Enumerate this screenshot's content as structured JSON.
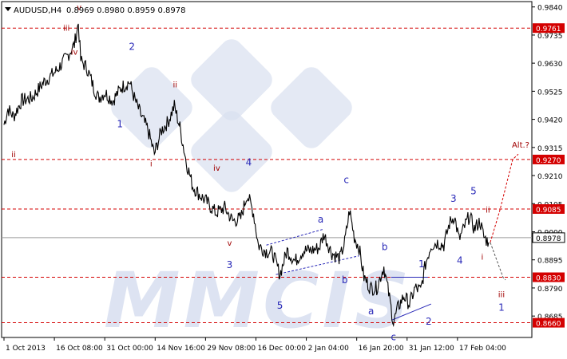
{
  "header": {
    "symbol": "AUDUSD,H4",
    "ohlc": "0.8969 0.8980 0.8959 0.8978"
  },
  "colors": {
    "price_line": "#000000",
    "level_line": "#d40000",
    "level_label_bg": "#d40000",
    "current_label_bg": "#ffffff",
    "wave_red": "#a00000",
    "wave_blue": "#2a2ab8",
    "watermark": "#d8dff0"
  },
  "watermark": {
    "text": "MMCIS"
  },
  "chart_data": {
    "type": "line",
    "ylim": [
      0.8605,
      0.986
    ],
    "x_ticks": [
      {
        "label": "1 Oct 2013",
        "t": 0
      },
      {
        "label": "16 Oct 08:00",
        "t": 63
      },
      {
        "label": "31 Oct 00:00",
        "t": 126
      },
      {
        "label": "14 Nov 16:00",
        "t": 189
      },
      {
        "label": "29 Nov 08:00",
        "t": 252
      },
      {
        "label": "16 Dec 00:00",
        "t": 315
      },
      {
        "label": "2 Jan 04:00",
        "t": 378
      },
      {
        "label": "16 Jan 20:00",
        "t": 441
      },
      {
        "label": "31 Jan 12:00",
        "t": 504
      },
      {
        "label": "17 Feb 04:00",
        "t": 567
      }
    ],
    "y_ticks": [
      "0.9840",
      "0.9735",
      "0.9630",
      "0.9525",
      "0.9420",
      "0.9315",
      "0.9210",
      "0.9105",
      "0.9000",
      "0.8895",
      "0.8790",
      "0.8685"
    ],
    "levels": [
      {
        "label": "0.9761",
        "value": 0.9761
      },
      {
        "label": "0.9270",
        "value": 0.927
      },
      {
        "label": "0.9085",
        "value": 0.9085
      },
      {
        "label": "0.8830",
        "value": 0.883
      },
      {
        "label": "0.8660",
        "value": 0.866
      }
    ],
    "current_price": {
      "label": "0.8978",
      "value": 0.8978
    },
    "series": [
      {
        "anchors": [
          [
            0,
            0.94
          ],
          [
            5,
            0.946
          ],
          [
            12,
            0.943
          ],
          [
            22,
            0.949
          ],
          [
            35,
            0.95
          ],
          [
            50,
            0.956
          ],
          [
            65,
            0.96
          ],
          [
            78,
            0.965
          ],
          [
            88,
            0.97
          ],
          [
            93,
            0.978
          ],
          [
            96,
            0.964
          ],
          [
            104,
            0.961
          ],
          [
            112,
            0.954
          ],
          [
            118,
            0.95
          ],
          [
            126,
            0.952
          ],
          [
            136,
            0.949
          ],
          [
            147,
            0.954
          ],
          [
            157,
            0.956
          ],
          [
            164,
            0.949
          ],
          [
            172,
            0.943
          ],
          [
            180,
            0.938
          ],
          [
            188,
            0.929
          ],
          [
            197,
            0.938
          ],
          [
            205,
            0.941
          ],
          [
            213,
            0.947
          ],
          [
            220,
            0.939
          ],
          [
            228,
            0.926
          ],
          [
            236,
            0.917
          ],
          [
            244,
            0.914
          ],
          [
            254,
            0.911
          ],
          [
            265,
            0.907
          ],
          [
            276,
            0.909
          ],
          [
            286,
            0.904
          ],
          [
            296,
            0.905
          ],
          [
            304,
            0.914
          ],
          [
            312,
            0.907
          ],
          [
            318,
            0.895
          ],
          [
            326,
            0.893
          ],
          [
            336,
            0.892
          ],
          [
            345,
            0.884
          ],
          [
            354,
            0.893
          ],
          [
            364,
            0.889
          ],
          [
            374,
            0.893
          ],
          [
            384,
            0.893
          ],
          [
            394,
            0.894
          ],
          [
            400,
            0.899
          ],
          [
            410,
            0.892
          ],
          [
            420,
            0.89
          ],
          [
            426,
            0.896
          ],
          [
            432,
            0.908
          ],
          [
            438,
            0.898
          ],
          [
            444,
            0.894
          ],
          [
            450,
            0.883
          ],
          [
            458,
            0.879
          ],
          [
            466,
            0.879
          ],
          [
            475,
            0.887
          ],
          [
            481,
            0.877
          ],
          [
            487,
            0.866
          ],
          [
            493,
            0.872
          ],
          [
            500,
            0.876
          ],
          [
            507,
            0.873
          ],
          [
            514,
            0.879
          ],
          [
            521,
            0.878
          ],
          [
            527,
            0.888
          ],
          [
            534,
            0.895
          ],
          [
            542,
            0.896
          ],
          [
            550,
            0.895
          ],
          [
            557,
            0.903
          ],
          [
            563,
            0.906
          ],
          [
            569,
            0.897
          ],
          [
            576,
            0.902
          ],
          [
            582,
            0.906
          ],
          [
            588,
            0.901
          ],
          [
            595,
            0.904
          ],
          [
            600,
            0.898
          ],
          [
            606,
            0.896
          ]
        ]
      }
    ],
    "projection": [
      [
        608,
        0.896
      ],
      [
        620,
        0.908
      ],
      [
        636,
        0.927
      ],
      [
        643,
        0.929
      ]
    ],
    "forecast_down": [
      [
        608,
        0.896
      ],
      [
        624,
        0.883
      ],
      [
        627,
        0.882
      ]
    ],
    "channels": [
      [
        [
          328,
          0.895
        ],
        [
          400,
          0.901
        ]
      ],
      [
        [
          340,
          0.884
        ],
        [
          444,
          0.891
        ]
      ],
      [
        [
          484,
          0.883
        ],
        [
          530,
          0.883
        ]
      ],
      [
        [
          485,
          0.867
        ],
        [
          534,
          0.873
        ]
      ]
    ],
    "wave_labels": [
      {
        "text": "v",
        "t": 94,
        "p": 0.9828,
        "color": "red"
      },
      {
        "text": "iii",
        "t": 78,
        "p": 0.9751,
        "color": "red"
      },
      {
        "text": "iv",
        "t": 88,
        "p": 0.9662,
        "color": "red"
      },
      {
        "text": "ii",
        "t": 12,
        "p": 0.9278,
        "color": "red"
      },
      {
        "text": "2",
        "t": 160,
        "p": 0.968,
        "color": "blue"
      },
      {
        "text": "1",
        "t": 145,
        "p": 0.939,
        "color": "blue"
      },
      {
        "text": "ii",
        "t": 214,
        "p": 0.954,
        "color": "red"
      },
      {
        "text": "i",
        "t": 184,
        "p": 0.9245,
        "color": "red"
      },
      {
        "text": "iv",
        "t": 266,
        "p": 0.9228,
        "color": "red"
      },
      {
        "text": "4",
        "t": 306,
        "p": 0.9248,
        "color": "blue"
      },
      {
        "text": "v",
        "t": 282,
        "p": 0.8948,
        "color": "red"
      },
      {
        "text": "3",
        "t": 282,
        "p": 0.8865,
        "color": "blue"
      },
      {
        "text": "c",
        "t": 428,
        "p": 0.9182,
        "color": "blue"
      },
      {
        "text": "a",
        "t": 396,
        "p": 0.9035,
        "color": "blue"
      },
      {
        "text": "b",
        "t": 426,
        "p": 0.8808,
        "color": "blue"
      },
      {
        "text": "5",
        "t": 345,
        "p": 0.8713,
        "color": "blue"
      },
      {
        "text": "b",
        "t": 476,
        "p": 0.8932,
        "color": "blue"
      },
      {
        "text": "a",
        "t": 459,
        "p": 0.8692,
        "color": "blue"
      },
      {
        "text": "c",
        "t": 487,
        "p": 0.8595,
        "color": "blue"
      },
      {
        "text": "1",
        "t": 522,
        "p": 0.8868,
        "color": "blue"
      },
      {
        "text": "2",
        "t": 531,
        "p": 0.8652,
        "color": "blue"
      },
      {
        "text": "3",
        "t": 562,
        "p": 0.9112,
        "color": "blue"
      },
      {
        "text": "5",
        "t": 587,
        "p": 0.914,
        "color": "blue"
      },
      {
        "text": "4",
        "t": 570,
        "p": 0.888,
        "color": "blue"
      },
      {
        "text": "ii",
        "t": 605,
        "p": 0.9072,
        "color": "red"
      },
      {
        "text": "i",
        "t": 598,
        "p": 0.8895,
        "color": "red"
      },
      {
        "text": "iii",
        "t": 622,
        "p": 0.8755,
        "color": "red"
      },
      {
        "text": "1",
        "t": 622,
        "p": 0.8705,
        "color": "blue"
      },
      {
        "text": "Alt.?",
        "t": 646,
        "p": 0.9315,
        "color": "red"
      }
    ]
  }
}
